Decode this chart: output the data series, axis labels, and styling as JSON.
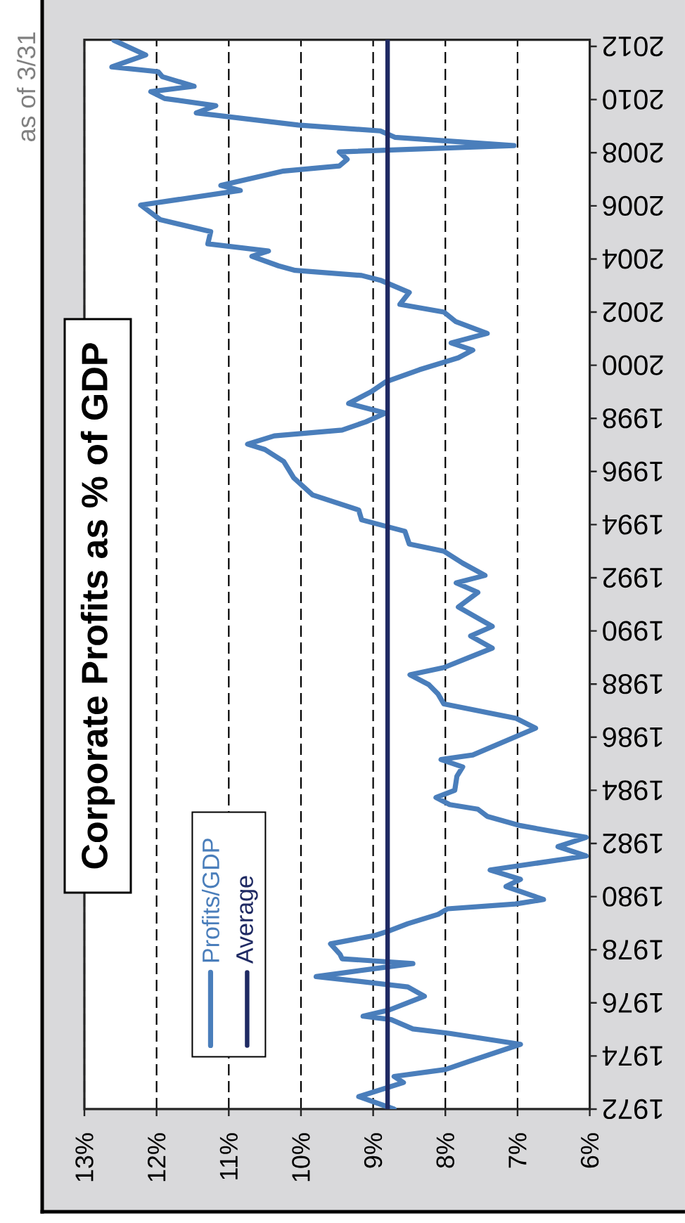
{
  "chart_data": {
    "type": "line",
    "orientation": "horizontal",
    "title": "Corporate Profits as % of GDP",
    "annotations": [
      "as of 3/31"
    ],
    "x": [
      1972.0,
      1972.47,
      1973.0,
      1973.23,
      1973.49,
      1973.79,
      1974.44,
      1974.85,
      1975.02,
      1975.37,
      1975.5,
      1975.73,
      1976.25,
      1976.6,
      1976.99,
      1977.48,
      1977.66,
      1977.83,
      1978.22,
      1978.54,
      1978.71,
      1978.98,
      1979.33,
      1979.54,
      1979.72,
      1979.89,
      1980.38,
      1980.65,
      1981.0,
      1981.53,
      1981.88,
      1982.23,
      1982.67,
      1983.02,
      1983.29,
      1983.46,
      1983.73,
      1984.0,
      1984.53,
      1984.88,
      1985.16,
      1985.33,
      1986.34,
      1986.71,
      1987.25,
      1987.62,
      1987.98,
      1988.35,
      1988.62,
      1988.98,
      1989.35,
      1989.81,
      1990.17,
      1990.9,
      1991.45,
      1991.81,
      1992.09,
      1992.55,
      1993.0,
      1993.27,
      1993.75,
      1994.18,
      1994.55,
      1995.12,
      1995.76,
      1996.38,
      1996.83,
      1997.03,
      1997.34,
      1997.56,
      1997.87,
      1998.2,
      1998.56,
      1999.0,
      1999.37,
      1999.83,
      2000.28,
      2000.57,
      2000.84,
      2001.2,
      2001.65,
      2002.0,
      2002.29,
      2002.74,
      2003.2,
      2003.38,
      2003.57,
      2003.74,
      2004.1,
      2004.3,
      2004.57,
      2005.03,
      2005.48,
      2006.03,
      2006.58,
      2006.77,
      2007.31,
      2007.5,
      2007.75,
      2008.03,
      2008.27,
      2008.58,
      2008.82,
      2009.04,
      2009.5,
      2009.77,
      2010.04,
      2010.3,
      2010.5,
      2010.86,
      2011.05,
      2011.23,
      2011.68,
      2012.23
    ],
    "series": [
      {
        "name": "Profits/GDP",
        "color": "#4a7ebb",
        "values": [
          8.71,
          9.2,
          8.58,
          8.71,
          8.0,
          7.68,
          6.96,
          7.94,
          8.45,
          8.75,
          9.14,
          8.78,
          8.29,
          8.52,
          9.79,
          8.45,
          9.43,
          9.46,
          9.59,
          8.97,
          8.78,
          8.52,
          8.1,
          7.97,
          7.03,
          6.64,
          7.16,
          6.96,
          7.38,
          6.05,
          6.44,
          6.05,
          6.96,
          7.42,
          7.55,
          7.94,
          8.13,
          7.87,
          7.84,
          7.76,
          8.06,
          7.62,
          6.75,
          7.02,
          8.02,
          8.1,
          8.23,
          8.49,
          8.02,
          7.69,
          7.35,
          7.65,
          7.35,
          7.82,
          7.55,
          7.85,
          7.45,
          7.76,
          8.02,
          8.5,
          8.56,
          9.16,
          9.2,
          9.84,
          10.1,
          10.24,
          10.5,
          10.74,
          10.37,
          9.43,
          9.1,
          8.83,
          9.34,
          9.03,
          8.83,
          8.36,
          7.82,
          7.62,
          7.92,
          7.42,
          7.86,
          8.02,
          8.63,
          8.5,
          8.9,
          9.16,
          10.08,
          10.31,
          10.68,
          10.45,
          11.29,
          11.25,
          11.95,
          12.22,
          10.84,
          11.11,
          10.24,
          9.47,
          9.36,
          9.47,
          7.05,
          8.7,
          8.9,
          10.04,
          11.45,
          11.18,
          11.89,
          12.08,
          11.48,
          11.92,
          11.98,
          12.62,
          12.15,
          12.59
        ]
      },
      {
        "name": "Average",
        "color": "#1f2a63",
        "x": [
          1972,
          2012.25
        ],
        "values": [
          8.8,
          8.8
        ]
      }
    ],
    "xlim": [
      13,
      6
    ],
    "xticks": [
      {
        "value": 13,
        "label": "13%"
      },
      {
        "value": 12,
        "label": "12%"
      },
      {
        "value": 11,
        "label": "11%"
      },
      {
        "value": 10,
        "label": "10%"
      },
      {
        "value": 9,
        "label": "9%"
      },
      {
        "value": 8,
        "label": "8%"
      },
      {
        "value": 7,
        "label": "7%"
      },
      {
        "value": 6,
        "label": "6%"
      }
    ],
    "ylim": [
      1972,
      2012.25
    ],
    "yticks": [
      1972,
      1974,
      1976,
      1978,
      1980,
      1982,
      1984,
      1986,
      1988,
      1990,
      1992,
      1994,
      1996,
      1998,
      2000,
      2002,
      2004,
      2006,
      2008,
      2010,
      2012
    ],
    "grid": "x",
    "legend": "bottom left"
  }
}
